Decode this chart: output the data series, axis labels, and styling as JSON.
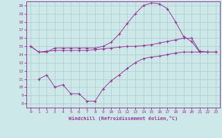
{
  "xlabel": "Windchill (Refroidissement éolien,°C)",
  "bg_color": "#cce8e8",
  "line_color": "#993399",
  "grid_color": "#aacccc",
  "xlim": [
    -0.5,
    23.5
  ],
  "ylim": [
    7.5,
    20.5
  ],
  "xticks": [
    0,
    1,
    2,
    3,
    4,
    5,
    6,
    7,
    8,
    9,
    10,
    11,
    12,
    13,
    14,
    15,
    16,
    17,
    18,
    19,
    20,
    21,
    22,
    23
  ],
  "yticks": [
    8,
    9,
    10,
    11,
    12,
    13,
    14,
    15,
    16,
    17,
    18,
    19,
    20
  ],
  "line1_x": [
    0,
    1,
    2,
    3,
    4,
    5,
    6,
    7,
    8,
    9,
    10,
    11,
    12,
    13,
    14,
    15,
    16,
    17,
    18,
    19,
    20,
    21,
    22,
    23
  ],
  "line1_y": [
    15.0,
    14.3,
    14.3,
    14.8,
    14.8,
    14.8,
    14.8,
    14.8,
    14.8,
    15.0,
    15.5,
    16.5,
    17.8,
    19.0,
    20.0,
    20.3,
    20.2,
    19.6,
    18.0,
    16.2,
    15.6,
    14.3,
    14.3,
    14.3
  ],
  "line2_x": [
    0,
    1,
    2,
    3,
    4,
    5,
    6,
    7,
    8,
    9,
    10,
    11,
    12,
    13,
    14,
    15,
    16,
    17,
    18,
    19,
    20,
    21,
    22,
    23
  ],
  "line2_y": [
    15.0,
    14.3,
    14.4,
    14.5,
    14.5,
    14.5,
    14.5,
    14.5,
    14.6,
    14.7,
    14.8,
    14.9,
    15.0,
    15.0,
    15.1,
    15.2,
    15.4,
    15.6,
    15.8,
    16.0,
    16.0,
    14.4,
    14.3,
    14.3
  ],
  "line3_x": [
    1,
    2,
    3,
    4,
    5,
    6,
    7,
    8,
    9,
    10,
    11,
    12,
    13,
    14,
    15,
    16,
    17,
    18,
    19,
    20,
    21,
    22,
    23
  ],
  "line3_y": [
    11.0,
    11.5,
    10.0,
    10.3,
    9.2,
    9.2,
    8.3,
    8.3,
    9.8,
    10.8,
    11.5,
    12.3,
    13.0,
    13.5,
    13.7,
    13.8,
    14.0,
    14.2,
    14.3,
    14.3,
    14.3,
    14.3,
    14.3
  ]
}
